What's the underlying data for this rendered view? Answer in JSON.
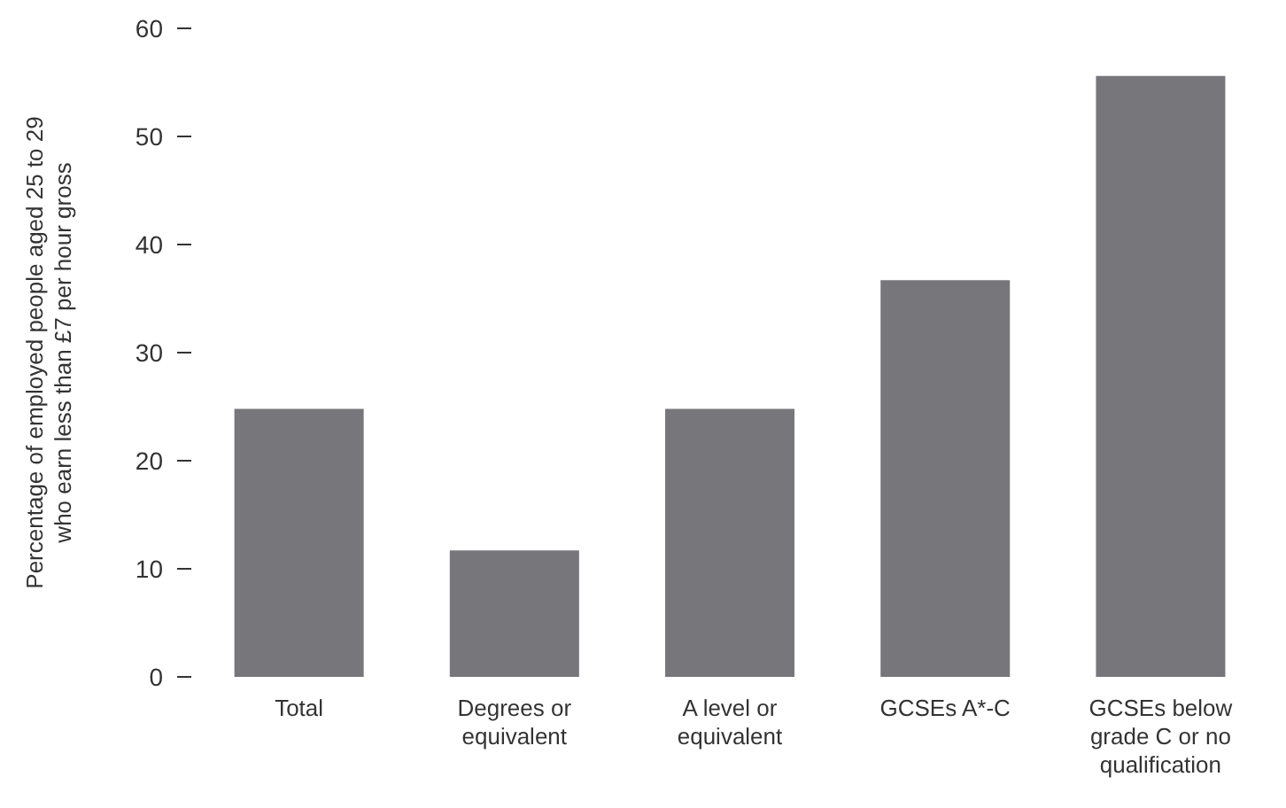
{
  "chart_data": {
    "type": "bar",
    "ylabel": "Percentage of employed people aged 25 to 29 who earn less than £7 per hour gross",
    "categories": [
      "Total",
      "Degrees or equivalent",
      "A level or equivalent",
      "GCSEs A*-C",
      "GCSEs below grade C or no qualification"
    ],
    "values": [
      24.8,
      11.7,
      24.8,
      36.7,
      55.6
    ],
    "color": "#77777b",
    "ylim": [
      0,
      60
    ],
    "yticks": [
      0,
      10,
      20,
      30,
      40,
      50,
      60
    ],
    "grid": false
  }
}
